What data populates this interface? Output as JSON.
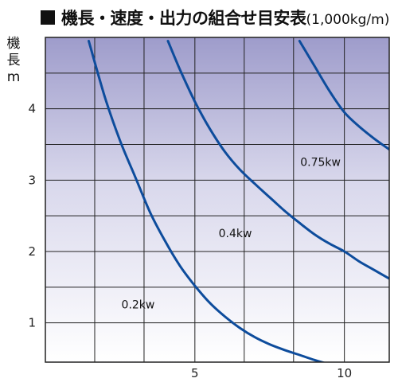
{
  "chart_data": {
    "type": "line",
    "title": "機長・速度・出力の組合せ目安表",
    "title_unit": "(1,000kg/m)",
    "ylabel": "機長\nm",
    "xlabel": "",
    "xlim": [
      0,
      11.5
    ],
    "ylim": [
      0.45,
      5.0
    ],
    "x_ticks": [
      5,
      10
    ],
    "y_ticks": [
      1,
      2,
      3,
      4
    ],
    "grid": true,
    "x_grid": [
      1.65,
      3.3,
      5.0,
      6.65,
      8.3,
      10.0
    ],
    "y_grid": [
      1,
      1.5,
      2,
      2.5,
      3,
      3.5,
      4,
      4.5
    ],
    "background": "lavender gradient (top) to white (bottom)",
    "line_color": "#0d4c9c",
    "series": [
      {
        "name": "0.2kw",
        "x": [
          1.45,
          2.0,
          2.5,
          3.0,
          3.5,
          4.0,
          4.5,
          5.0,
          5.5,
          6.0,
          6.5,
          7.0,
          7.5,
          8.0,
          8.5,
          9.0,
          9.5,
          10.0
        ],
        "y": [
          4.95,
          4.15,
          3.55,
          3.05,
          2.55,
          2.15,
          1.8,
          1.52,
          1.28,
          1.09,
          0.93,
          0.8,
          0.7,
          0.62,
          0.55,
          0.48,
          0.42,
          0.37
        ]
      },
      {
        "name": "0.4kw",
        "x": [
          4.1,
          4.5,
          5.0,
          5.5,
          6.0,
          6.5,
          7.0,
          7.5,
          8.0,
          8.5,
          9.0,
          9.5,
          10.0,
          10.5,
          11.0,
          11.5
        ],
        "y": [
          4.95,
          4.55,
          4.1,
          3.72,
          3.4,
          3.15,
          2.95,
          2.76,
          2.57,
          2.4,
          2.24,
          2.11,
          2.0,
          1.86,
          1.74,
          1.62
        ]
      },
      {
        "name": "0.75kw",
        "x": [
          8.5,
          9.0,
          9.5,
          10.0,
          10.5,
          11.0,
          11.5
        ],
        "y": [
          4.95,
          4.6,
          4.25,
          3.95,
          3.75,
          3.58,
          3.43
        ]
      }
    ],
    "annotations": [
      {
        "text": "0.2kw",
        "x": 3.1,
        "y": 1.2
      },
      {
        "text": "0.4kw",
        "x": 6.35,
        "y": 2.2
      },
      {
        "text": "0.75kw",
        "x": 9.2,
        "y": 3.2
      }
    ]
  }
}
